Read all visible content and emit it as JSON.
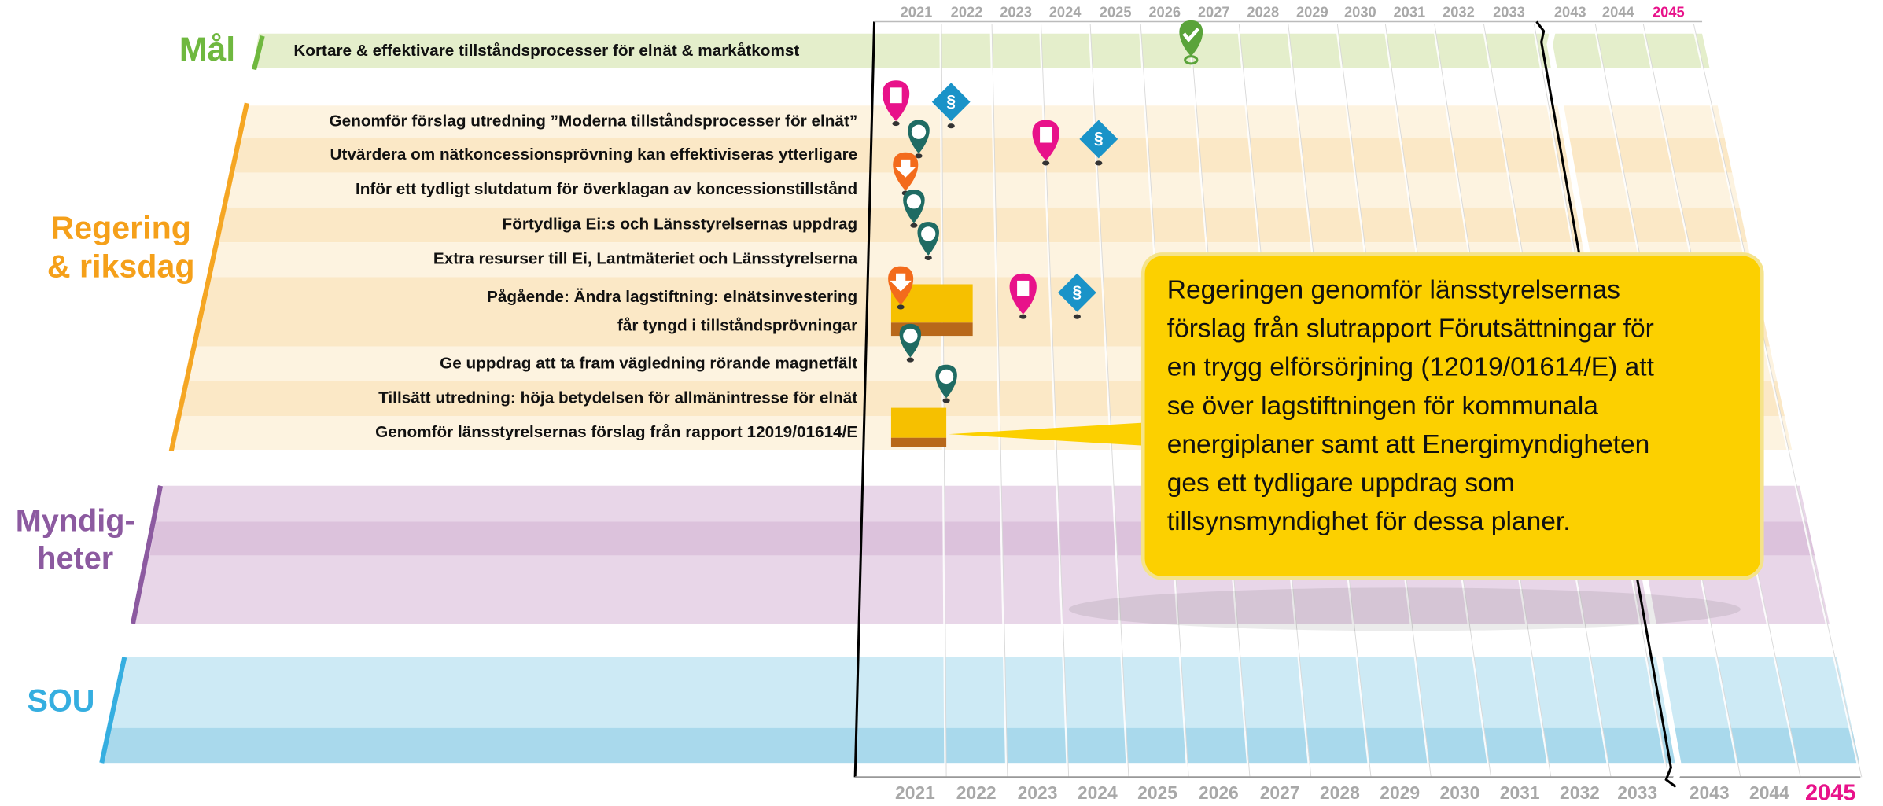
{
  "years_top": [
    {
      "year": "2021"
    },
    {
      "year": "2022"
    },
    {
      "year": "2023"
    },
    {
      "year": "2024"
    },
    {
      "year": "2025"
    },
    {
      "year": "2026"
    },
    {
      "year": "2027"
    },
    {
      "year": "2028"
    },
    {
      "year": "2029"
    },
    {
      "year": "2030"
    },
    {
      "year": "2031"
    },
    {
      "year": "2032"
    },
    {
      "year": "2033"
    },
    {
      "year": "2043"
    },
    {
      "year": "2044"
    },
    {
      "year": "2045"
    }
  ],
  "years_bottom": [
    {
      "year": "2021"
    },
    {
      "year": "2022"
    },
    {
      "year": "2023"
    },
    {
      "year": "2024"
    },
    {
      "year": "2025"
    },
    {
      "year": "2026"
    },
    {
      "year": "2027"
    },
    {
      "year": "2028"
    },
    {
      "year": "2029"
    },
    {
      "year": "2030"
    },
    {
      "year": "2031"
    },
    {
      "year": "2032"
    },
    {
      "year": "2033"
    },
    {
      "year": "2043"
    },
    {
      "year": "2044"
    },
    {
      "year": "2045"
    }
  ],
  "groups": {
    "goal": {
      "label": "Mål",
      "text": "Kortare & effektivare tillståndsprocesser för elnät & markåtkomst"
    },
    "government": {
      "label_lines": [
        "Regering",
        "& riksdag"
      ]
    },
    "authorities": {
      "label_lines": [
        "Myndig-",
        "heter"
      ]
    },
    "sou": {
      "label": "SOU"
    }
  },
  "rows": [
    {
      "lines": [
        "Genomför förslag utredning ”Moderna tillståndsprocesser för elnät”"
      ]
    },
    {
      "lines": [
        "Utvärdera om nätkoncessionsprövning kan effektiviseras ytterligare"
      ]
    },
    {
      "lines": [
        "Inför ett tydligt slutdatum för överklagan av koncessionstillstånd"
      ]
    },
    {
      "lines": [
        "Förtydliga Ei:s och Länsstyrelsernas uppdrag"
      ]
    },
    {
      "lines": [
        "Extra resurser till Ei, Lantmäteriet och Länsstyrelserna"
      ]
    },
    {
      "lines": [
        "Pågående: Ändra lagstiftning: elnätsinvestering",
        "får tyngd i tillståndsprövningar"
      ]
    },
    {
      "lines": [
        "Ge uppdrag att ta fram vägledning rörande magnetfält"
      ]
    },
    {
      "lines": [
        "Tillsätt utredning: höja betydelsen för allmänintresse för elnät"
      ]
    },
    {
      "lines": [
        "Genomför länsstyrelsernas förslag från rapport 12019/01614/E"
      ]
    }
  ],
  "callout": {
    "lines": [
      "Regeringen genomför länsstyrelsernas",
      "förslag från slutrapport Förutsättningar för",
      "en trygg elförsörjning (12019/01614/E) att",
      "se över lagstiftningen för kommunala",
      "energiplaner samt att Energimyndigheten",
      "ges ett tydligare uppdrag som",
      "tillsynsmyndighet för dessa planer."
    ]
  }
}
